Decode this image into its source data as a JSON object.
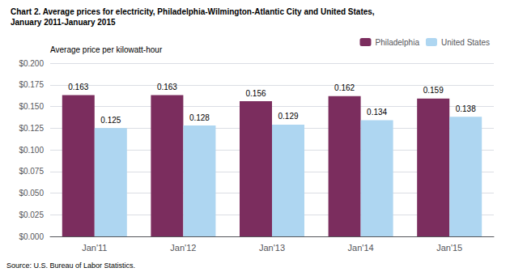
{
  "chart_data": {
    "type": "bar",
    "title": "Chart 2. Average prices for electricity, Philadelphia-Wilmington-Atlantic City and United States,",
    "subtitle": "January 2011-January 2015",
    "y_label": "Average price per kilowatt-hour",
    "source": "Source: U.S. Bureau of Labor Statistics.",
    "categories": [
      "Jan'11",
      "Jan'12",
      "Jan'13",
      "Jan'14",
      "Jan'15"
    ],
    "series": [
      {
        "name": "Philadelphia",
        "color": "#7b2d5e",
        "values": [
          0.163,
          0.163,
          0.156,
          0.162,
          0.159
        ]
      },
      {
        "name": "United States",
        "color": "#aed6f1",
        "values": [
          0.125,
          0.128,
          0.129,
          0.134,
          0.138
        ]
      }
    ],
    "ylim": [
      0.0,
      0.2
    ],
    "yticks": [
      {
        "value": 0.0,
        "label": "$0.000"
      },
      {
        "value": 0.025,
        "label": "$0.025"
      },
      {
        "value": 0.05,
        "label": "$0.050"
      },
      {
        "value": 0.075,
        "label": "$0.075"
      },
      {
        "value": 0.1,
        "label": "$0.100"
      },
      {
        "value": 0.125,
        "label": "$0.125"
      },
      {
        "value": 0.15,
        "label": "$0.150"
      },
      {
        "value": 0.175,
        "label": "$0.175"
      },
      {
        "value": 0.2,
        "label": "$0.200"
      }
    ],
    "grid": true,
    "legend": "upper right",
    "data_labels": true
  }
}
